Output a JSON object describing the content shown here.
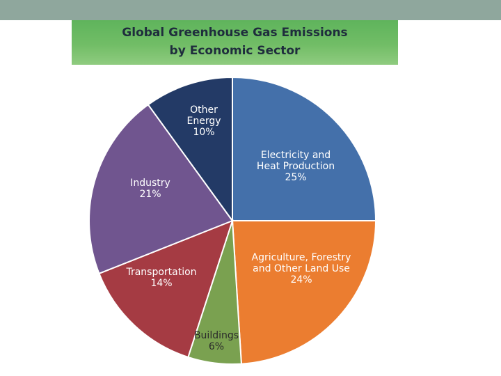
{
  "chart_data": {
    "type": "pie",
    "title": [
      "Global Greenhouse Gas Emissions",
      "by Economic Sector"
    ],
    "slices": [
      {
        "label": [
          "Electricity and",
          "Heat Production"
        ],
        "value": 25,
        "value_label": "25%",
        "color": "#4470aa"
      },
      {
        "label": [
          "Agriculture, Forestry",
          "and Other Land Use"
        ],
        "value": 24,
        "value_label": "24%",
        "color": "#eb7d30"
      },
      {
        "label": [
          "Buildings"
        ],
        "value": 6,
        "value_label": "6%",
        "color": "#7aa150"
      },
      {
        "label": [
          "Transportation"
        ],
        "value": 14,
        "value_label": "14%",
        "color": "#a53b43"
      },
      {
        "label": [
          "Industry"
        ],
        "value": 21,
        "value_label": "21%",
        "color": "#70558f"
      },
      {
        "label": [
          "Other",
          "Energy"
        ],
        "value": 10,
        "value_label": "10%",
        "color": "#233a66"
      }
    ],
    "label_color": "#ffffff",
    "buildings_label_color": "#2b2b2b"
  }
}
